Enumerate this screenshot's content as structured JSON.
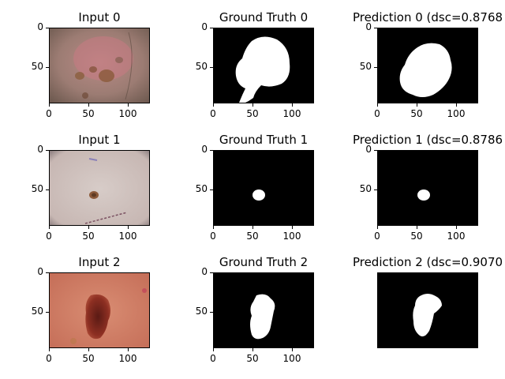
{
  "figure": {
    "panels": [
      {
        "row": 0,
        "col": 0,
        "title": "Input 0",
        "kind": "input",
        "show_axes": true,
        "xticks": [
          "0",
          "50",
          "100"
        ],
        "yticks": [
          "0",
          "50"
        ]
      },
      {
        "row": 0,
        "col": 1,
        "title": "Ground Truth 0",
        "kind": "mask",
        "show_axes": true,
        "xticks": [
          "0",
          "50",
          "100"
        ],
        "yticks": [
          "0",
          "50"
        ]
      },
      {
        "row": 0,
        "col": 2,
        "title": "Prediction 0 (dsc=0.8768",
        "kind": "mask",
        "show_axes": true,
        "xticks": [
          "0",
          "50",
          "100"
        ],
        "yticks": [
          "0",
          "50"
        ]
      },
      {
        "row": 1,
        "col": 0,
        "title": "Input 1",
        "kind": "input",
        "show_axes": true,
        "xticks": [
          "0",
          "50",
          "100"
        ],
        "yticks": [
          "0",
          "50"
        ]
      },
      {
        "row": 1,
        "col": 1,
        "title": "Ground Truth 1",
        "kind": "mask",
        "show_axes": true,
        "xticks": [
          "0",
          "50",
          "100"
        ],
        "yticks": [
          "0",
          "50"
        ]
      },
      {
        "row": 1,
        "col": 2,
        "title": "Prediction 1 (dsc=0.8786",
        "kind": "mask",
        "show_axes": true,
        "xticks": [
          "0",
          "50",
          "100"
        ],
        "yticks": [
          "0",
          "50"
        ]
      },
      {
        "row": 2,
        "col": 0,
        "title": "Input 2",
        "kind": "input",
        "show_axes": true,
        "xticks": [
          "0",
          "50",
          "100"
        ],
        "yticks": [
          "0",
          "50"
        ]
      },
      {
        "row": 2,
        "col": 1,
        "title": "Ground Truth 2",
        "kind": "mask",
        "show_axes": true,
        "xticks": [
          "0",
          "50",
          "100"
        ],
        "yticks": [
          "0",
          "50"
        ]
      },
      {
        "row": 2,
        "col": 2,
        "title": "Prediction 2 (dsc=0.9070",
        "kind": "mask",
        "show_axes": false,
        "xticks": [],
        "yticks": []
      }
    ]
  }
}
